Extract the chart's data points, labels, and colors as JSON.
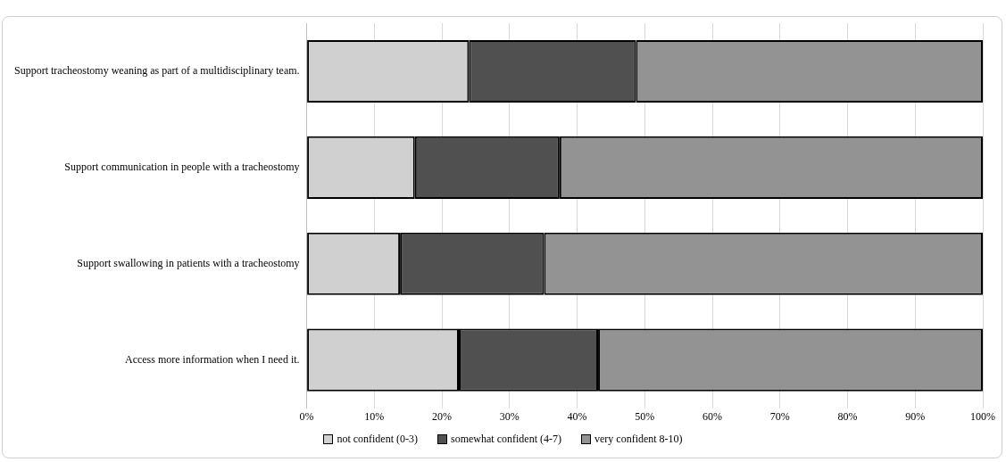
{
  "chart_data": {
    "type": "bar",
    "orientation": "horizontal",
    "stacked": true,
    "categories": [
      "Support tracheostomy weaning as part of a multidisciplinary team.",
      "Support communication in people with a tracheostomy",
      "Support swallowing in patients with a tracheostomy",
      "Access more information when I need it."
    ],
    "series": [
      {
        "name": "not confident (0-3)",
        "color": "#d0d0d0",
        "values": [
          24.0,
          16.0,
          13.8,
          22.5
        ]
      },
      {
        "name": "somewhat confident (4-7)",
        "color": "#505050",
        "values": [
          24.7,
          21.4,
          21.3,
          20.6
        ]
      },
      {
        "name": "very confident 8-10)",
        "color": "#939393",
        "values": [
          51.3,
          62.6,
          64.9,
          56.9
        ]
      }
    ],
    "xlim": [
      0,
      100
    ],
    "xticks": [
      {
        "value": 0,
        "label": "0%"
      },
      {
        "value": 10,
        "label": "10%"
      },
      {
        "value": 20,
        "label": "20%"
      },
      {
        "value": 30,
        "label": "30%"
      },
      {
        "value": 40,
        "label": "40%"
      },
      {
        "value": 50,
        "label": "50%"
      },
      {
        "value": 60,
        "label": "60%"
      },
      {
        "value": 70,
        "label": "70%"
      },
      {
        "value": 80,
        "label": "80%"
      },
      {
        "value": 90,
        "label": "90%"
      },
      {
        "value": 100,
        "label": "100%"
      }
    ],
    "grid": "x",
    "legend": "bottom"
  }
}
